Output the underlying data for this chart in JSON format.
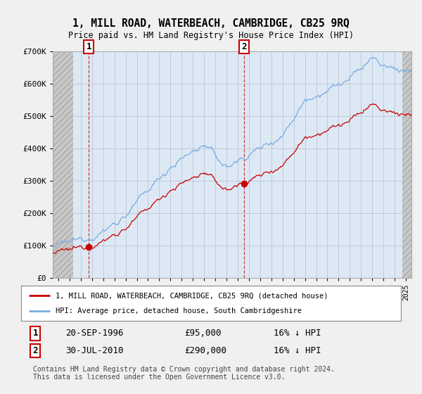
{
  "title": "1, MILL ROAD, WATERBEACH, CAMBRIDGE, CB25 9RQ",
  "subtitle": "Price paid vs. HM Land Registry's House Price Index (HPI)",
  "ylim": [
    0,
    700000
  ],
  "yticks": [
    0,
    100000,
    200000,
    300000,
    400000,
    500000,
    600000,
    700000
  ],
  "ytick_labels": [
    "£0",
    "£100K",
    "£200K",
    "£300K",
    "£400K",
    "£500K",
    "£600K",
    "£700K"
  ],
  "bg_color": "#f0f0f0",
  "plot_bg_color": "#dce9f5",
  "sale1_date_num": 1996.72,
  "sale1_price": 95000,
  "sale2_date_num": 2010.58,
  "sale2_price": 290000,
  "sale1_date_str": "20-SEP-1996",
  "sale1_price_str": "£95,000",
  "sale1_hpi_str": "16% ↓ HPI",
  "sale2_date_str": "30-JUL-2010",
  "sale2_price_str": "£290,000",
  "sale2_hpi_str": "16% ↓ HPI",
  "legend_line1": "1, MILL ROAD, WATERBEACH, CAMBRIDGE, CB25 9RQ (detached house)",
  "legend_line2": "HPI: Average price, detached house, South Cambridgeshire",
  "footer": "Contains HM Land Registry data © Crown copyright and database right 2024.\nThis data is licensed under the Open Government Licence v3.0.",
  "sold_color": "#cc0000",
  "hpi_color": "#7aabe0",
  "xmin": 1993.5,
  "xmax": 2025.5,
  "hatch_end": 1995.3,
  "hatch_start_right": 2024.7
}
